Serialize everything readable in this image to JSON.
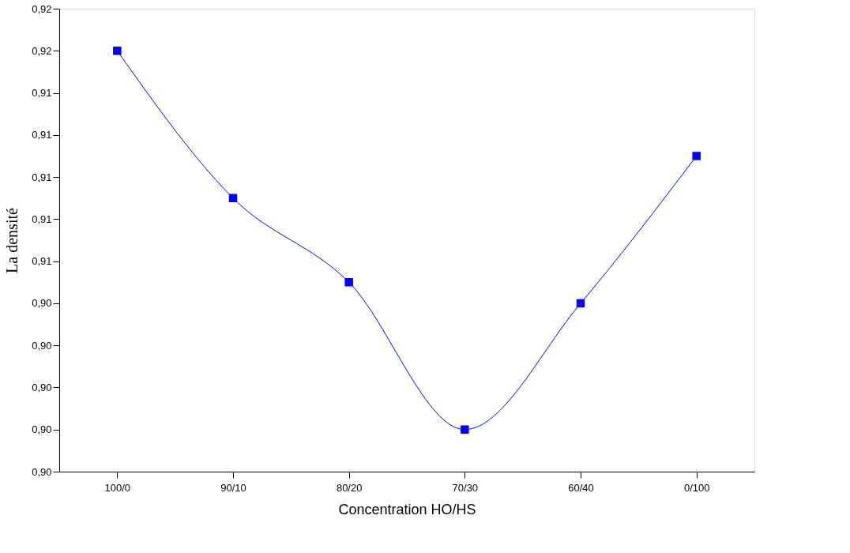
{
  "chart_data": {
    "type": "line",
    "xlabel": "Concentration HO/HS",
    "ylabel": "La densité",
    "categories": [
      "100/0",
      "90/10",
      "80/20",
      "70/30",
      "60/40",
      "0/100"
    ],
    "series": [
      {
        "color": "#0000ff",
        "values": [
          0.916,
          0.909,
          0.905,
          0.898,
          0.904,
          0.911
        ]
      }
    ],
    "marker": "square",
    "line_style": "solid",
    "grid": false,
    "ylim": [
      0.896,
      0.918
    ],
    "yticks": [
      {
        "value": 0.896,
        "label": "0,90"
      },
      {
        "value": 0.898,
        "label": "0,90"
      },
      {
        "value": 0.9,
        "label": "0,90"
      },
      {
        "value": 0.902,
        "label": "0,90"
      },
      {
        "value": 0.904,
        "label": "0,90"
      },
      {
        "value": 0.906,
        "label": "0,91"
      },
      {
        "value": 0.908,
        "label": "0,91"
      },
      {
        "value": 0.91,
        "label": "0,91"
      },
      {
        "value": 0.912,
        "label": "0,91"
      },
      {
        "value": 0.914,
        "label": "0,91"
      },
      {
        "value": 0.916,
        "label": "0,92"
      },
      {
        "value": 0.918,
        "label": "0,92"
      }
    ]
  }
}
